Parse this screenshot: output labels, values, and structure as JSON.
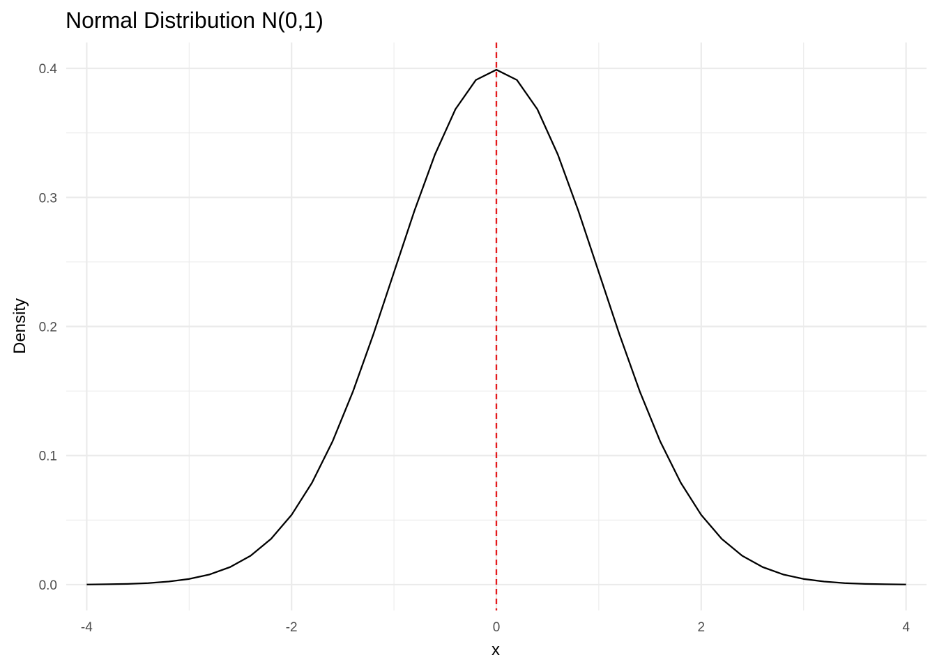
{
  "chart_data": {
    "type": "line",
    "title": "Normal Distribution N(0,1)",
    "xlabel": "x",
    "ylabel": "Density",
    "xlim": [
      -4.2,
      4.2
    ],
    "ylim": [
      -0.02,
      0.42
    ],
    "x_ticks": [
      -4,
      -2,
      0,
      2,
      4
    ],
    "x_tick_labels": [
      "-4",
      "-2",
      "0",
      "2",
      "4"
    ],
    "x_minor_ticks": [
      -3,
      -1,
      1,
      3
    ],
    "y_ticks": [
      0.0,
      0.1,
      0.2,
      0.3,
      0.4
    ],
    "y_tick_labels": [
      "0.0",
      "0.1",
      "0.2",
      "0.3",
      "0.4"
    ],
    "y_minor_ticks": [
      0.05,
      0.15,
      0.25,
      0.35
    ],
    "grid": true,
    "series": [
      {
        "color": "#000000",
        "x": [
          -4.0,
          -3.8,
          -3.6,
          -3.4,
          -3.2,
          -3.0,
          -2.8,
          -2.6,
          -2.4,
          -2.2,
          -2.0,
          -1.8,
          -1.6,
          -1.4,
          -1.2,
          -1.0,
          -0.8,
          -0.6,
          -0.4,
          -0.2,
          0.0,
          0.2,
          0.4,
          0.6,
          0.8,
          1.0,
          1.2,
          1.4,
          1.6,
          1.8,
          2.0,
          2.2,
          2.4,
          2.6,
          2.8,
          3.0,
          3.2,
          3.4,
          3.6,
          3.8,
          4.0
        ],
        "y": [
          0.0001,
          0.0003,
          0.0006,
          0.0012,
          0.0024,
          0.0044,
          0.0079,
          0.0136,
          0.0224,
          0.0355,
          0.054,
          0.079,
          0.1109,
          0.1497,
          0.1942,
          0.242,
          0.2897,
          0.3332,
          0.3683,
          0.391,
          0.3989,
          0.391,
          0.3683,
          0.3332,
          0.2897,
          0.242,
          0.1942,
          0.1497,
          0.1109,
          0.079,
          0.054,
          0.0355,
          0.0224,
          0.0136,
          0.0079,
          0.0044,
          0.0024,
          0.0012,
          0.0006,
          0.0003,
          0.0001
        ]
      }
    ],
    "vline": {
      "x": 0,
      "color": "#e41a1c",
      "style": "dashed"
    }
  }
}
